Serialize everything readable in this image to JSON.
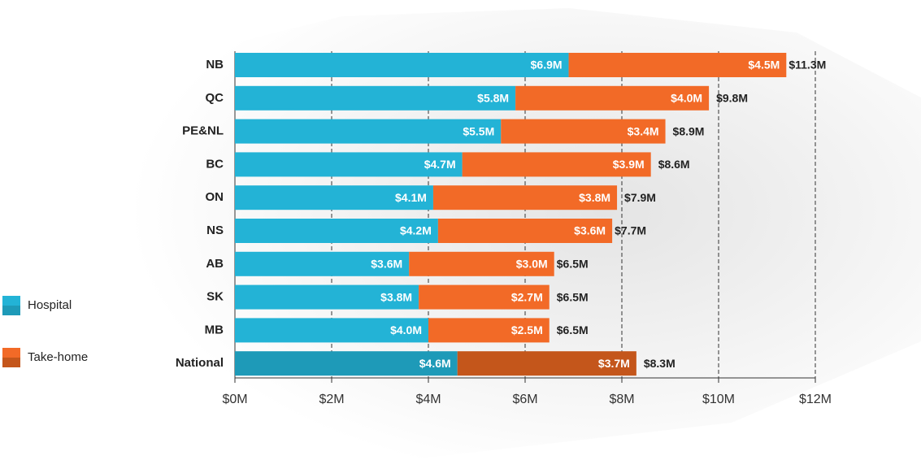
{
  "chart_data": {
    "type": "stacked-bar-horizontal",
    "categories": [
      "NB",
      "QC",
      "PE&NL",
      "BC",
      "ON",
      "NS",
      "AB",
      "SK",
      "MB",
      "National"
    ],
    "series": [
      {
        "name": "Hospital",
        "color": "#23b3d6",
        "highlight_color": "#1e9ab8",
        "values": [
          6.9,
          5.8,
          5.5,
          4.7,
          4.1,
          4.2,
          3.6,
          3.8,
          4.0,
          4.6
        ],
        "value_labels": [
          "$6.9M",
          "$5.8M",
          "$5.5M",
          "$4.7M",
          "$4.1M",
          "$4.2M",
          "$3.6M",
          "$3.8M",
          "$4.0M",
          "$4.6M"
        ]
      },
      {
        "name": "Take-home",
        "color": "#f26a27",
        "highlight_color": "#c4561b",
        "values": [
          4.5,
          4.0,
          3.4,
          3.9,
          3.8,
          3.6,
          3.0,
          2.7,
          2.5,
          3.7
        ],
        "value_labels": [
          "$4.5M",
          "$4.0M",
          "$3.4M",
          "$3.9M",
          "$3.8M",
          "$3.6M",
          "$3.0M",
          "$2.7M",
          "$2.5M",
          "$3.7M"
        ]
      }
    ],
    "totals": {
      "values": [
        11.3,
        9.8,
        8.9,
        8.6,
        7.9,
        7.7,
        6.5,
        6.5,
        6.5,
        8.3
      ],
      "value_labels": [
        "$11.3M",
        "$9.8M",
        "$8.9M",
        "$8.6M",
        "$7.9M",
        "$7.7M",
        "$6.5M",
        "$6.5M",
        "$6.5M",
        "$8.3M"
      ]
    },
    "highlight_index": 9,
    "xlim": [
      0,
      12
    ],
    "xticks": [
      {
        "value": 0,
        "label": "$0M"
      },
      {
        "value": 2,
        "label": "$2M"
      },
      {
        "value": 4,
        "label": "$4M"
      },
      {
        "value": 6,
        "label": "$6M"
      },
      {
        "value": 8,
        "label": "$8M"
      },
      {
        "value": 10,
        "label": "$10M"
      },
      {
        "value": 12,
        "label": "$12M"
      }
    ],
    "grid": true,
    "legend": "left"
  }
}
